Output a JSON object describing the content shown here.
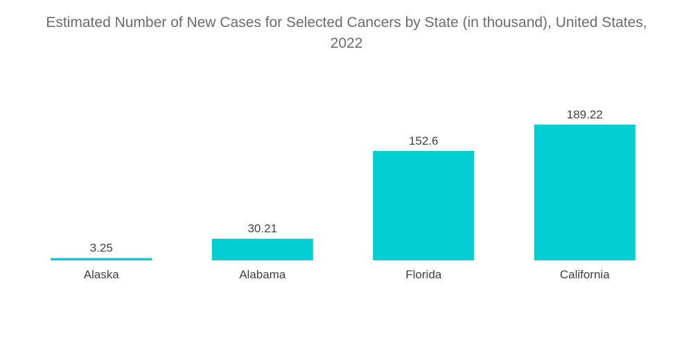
{
  "chart_data": {
    "type": "bar",
    "title_line1": "Estimated Number of New Cases for Selected Cancers by State (in thousand), United States,",
    "title_line2": "2022",
    "categories": [
      "Alaska",
      "Alabama",
      "Florida",
      "California"
    ],
    "values": [
      3.25,
      30.21,
      152.6,
      189.22
    ],
    "value_labels": [
      "3.25",
      "30.21",
      "152.6",
      "189.22"
    ],
    "xlabel": "",
    "ylabel": "",
    "ylim": [
      0,
      189.22
    ],
    "grid": false,
    "legend": "none",
    "bar_color": "#00ced1"
  }
}
